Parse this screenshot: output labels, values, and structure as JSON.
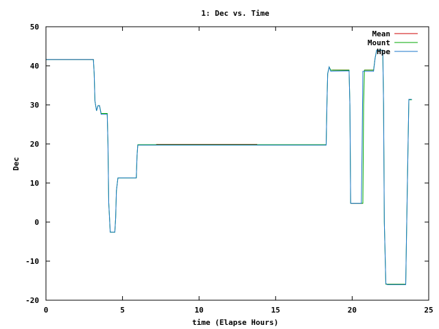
{
  "chart_data": {
    "type": "line",
    "title": "1: Dec vs. Time",
    "xlabel": "time (Elapse Hours)",
    "ylabel": "Dec",
    "xlim": [
      0,
      25
    ],
    "ylim": [
      -20,
      50
    ],
    "xticks": [
      0,
      5,
      10,
      15,
      20,
      25
    ],
    "yticks": [
      -20,
      -10,
      0,
      10,
      20,
      30,
      40,
      50
    ],
    "grid": false,
    "legend_position": "top-right",
    "series": [
      {
        "name": "Mean",
        "color": "#cc0000",
        "segments": [
          [
            [
              0,
              41.6
            ],
            [
              3.1,
              41.6
            ]
          ],
          [
            [
              3.6,
              27.8
            ],
            [
              4.0,
              27.8
            ]
          ],
          [
            [
              7.2,
              19.9
            ],
            [
              13.8,
              19.9
            ]
          ],
          [
            [
              18.7,
              38.9
            ],
            [
              19.8,
              38.9
            ]
          ],
          [
            [
              19.9,
              4.8
            ],
            [
              20.7,
              4.8
            ]
          ],
          [
            [
              20.8,
              38.9
            ],
            [
              21.4,
              38.9
            ]
          ],
          [
            [
              22.2,
              -15.9
            ],
            [
              23.5,
              -15.9
            ]
          ]
        ]
      },
      {
        "name": "Mount",
        "color": "#00aa00",
        "points": [
          [
            0,
            41.6
          ],
          [
            3.1,
            41.6
          ],
          [
            3.15,
            38
          ],
          [
            3.2,
            31
          ],
          [
            3.3,
            28.5
          ],
          [
            3.4,
            29.8
          ],
          [
            3.5,
            29.8
          ],
          [
            3.6,
            27.8
          ],
          [
            4.0,
            27.8
          ],
          [
            4.05,
            20
          ],
          [
            4.1,
            5
          ],
          [
            4.2,
            -2.6
          ],
          [
            4.5,
            -2.6
          ],
          [
            4.55,
            1
          ],
          [
            4.6,
            8
          ],
          [
            4.7,
            11.3
          ],
          [
            5.9,
            11.3
          ],
          [
            5.95,
            17
          ],
          [
            6.0,
            19.8
          ],
          [
            18.3,
            19.8
          ],
          [
            18.35,
            30
          ],
          [
            18.4,
            38
          ],
          [
            18.5,
            39.7
          ],
          [
            18.6,
            38.9
          ],
          [
            19.8,
            38.9
          ],
          [
            19.85,
            30
          ],
          [
            19.9,
            4.8
          ],
          [
            20.7,
            4.8
          ],
          [
            20.75,
            30
          ],
          [
            20.8,
            38.9
          ],
          [
            21.4,
            38.9
          ],
          [
            21.5,
            42
          ],
          [
            21.6,
            44
          ],
          [
            22.0,
            44
          ],
          [
            22.05,
            30
          ],
          [
            22.1,
            0
          ],
          [
            22.2,
            -15.9
          ],
          [
            23.5,
            -15.9
          ],
          [
            23.55,
            -4
          ],
          [
            23.65,
            20
          ],
          [
            23.7,
            31.3
          ],
          [
            23.9,
            31.3
          ]
        ]
      },
      {
        "name": "Hpe",
        "color": "#1a75c8",
        "points": [
          [
            0,
            41.6
          ],
          [
            3.1,
            41.6
          ],
          [
            3.15,
            38
          ],
          [
            3.2,
            31
          ],
          [
            3.3,
            28.5
          ],
          [
            3.4,
            29.8
          ],
          [
            3.5,
            29.8
          ],
          [
            3.6,
            27.6
          ],
          [
            4.0,
            27.6
          ],
          [
            4.05,
            20
          ],
          [
            4.1,
            5
          ],
          [
            4.2,
            -2.6
          ],
          [
            4.5,
            -2.6
          ],
          [
            4.55,
            1
          ],
          [
            4.6,
            8
          ],
          [
            4.7,
            11.3
          ],
          [
            5.9,
            11.3
          ],
          [
            5.95,
            17
          ],
          [
            6.0,
            19.7
          ],
          [
            18.3,
            19.7
          ],
          [
            18.35,
            30
          ],
          [
            18.4,
            38
          ],
          [
            18.5,
            39.7
          ],
          [
            18.6,
            38.6
          ],
          [
            19.8,
            38.7
          ],
          [
            19.85,
            30
          ],
          [
            19.9,
            4.8
          ],
          [
            20.6,
            4.8
          ],
          [
            20.65,
            20
          ],
          [
            20.7,
            38.6
          ],
          [
            21.4,
            38.6
          ],
          [
            21.5,
            42
          ],
          [
            21.6,
            44
          ],
          [
            22.0,
            44
          ],
          [
            22.05,
            30
          ],
          [
            22.1,
            0
          ],
          [
            22.2,
            -15.7
          ],
          [
            22.3,
            -16
          ],
          [
            23.5,
            -16
          ],
          [
            23.55,
            -4
          ],
          [
            23.65,
            20
          ],
          [
            23.7,
            31.4
          ],
          [
            23.9,
            31.4
          ]
        ]
      }
    ]
  }
}
